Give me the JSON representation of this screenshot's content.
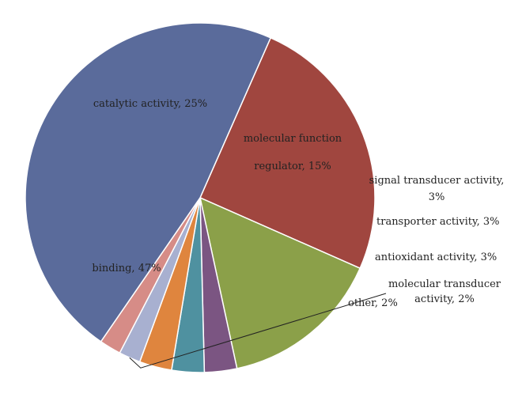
{
  "chart_data": {
    "type": "pie",
    "slices": [
      {
        "label": "catalytic activity, 25%",
        "value": 25,
        "color": "#a0463f"
      },
      {
        "label": "molecular function regulator, 15%",
        "value": 15,
        "color": "#8ba049"
      },
      {
        "label": "signal transducer activity, 3%",
        "value": 3,
        "color": "#7b5582"
      },
      {
        "label": "transporter activity, 3%",
        "value": 3,
        "color": "#4f91a0"
      },
      {
        "label": "antioxidant activity, 3%",
        "value": 3,
        "color": "#df853e"
      },
      {
        "label": "molecular transducer activity, 2%",
        "value": 2,
        "color": "#a8b0d0"
      },
      {
        "label": "other, 2%",
        "value": 2,
        "color": "#d68c87"
      },
      {
        "label": "binding, 47%",
        "value": 47,
        "color": "#5a6b9b"
      }
    ]
  }
}
